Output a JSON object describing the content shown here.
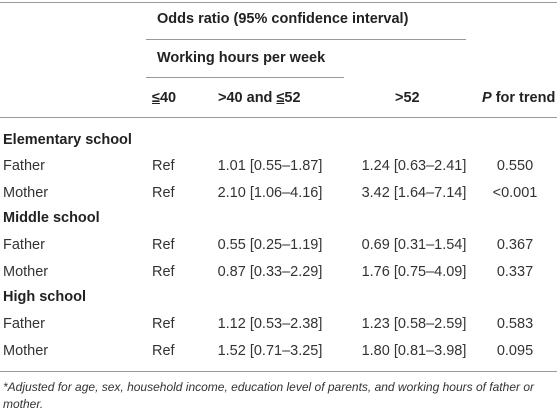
{
  "header": {
    "group": "Odds ratio (95% confidence interval)",
    "subgroup": "Working hours per week",
    "columns": {
      "c1_sym": "≤",
      "c1_num": "40",
      "c2_pre": ">40 and ",
      "c2_sym": "≤",
      "c2_num": "52",
      "c3": ">52",
      "trend_p": "P",
      "trend_rest": " for trend"
    }
  },
  "sections": [
    {
      "title": "Elementary school",
      "rows": [
        {
          "label": "Father",
          "ref": "Ref",
          "c2": "1.01 [0.55–1.87]",
          "c3": "1.24 [0.63–2.41]",
          "p": "0.550"
        },
        {
          "label": "Mother",
          "ref": "Ref",
          "c2": "2.10 [1.06–4.16]",
          "c3": "3.42 [1.64–7.14]",
          "p": "<0.001"
        }
      ]
    },
    {
      "title": "Middle school",
      "rows": [
        {
          "label": "Father",
          "ref": "Ref",
          "c2": "0.55 [0.25–1.19]",
          "c3": "0.69 [0.31–1.54]",
          "p": "0.367"
        },
        {
          "label": "Mother",
          "ref": "Ref",
          "c2": "0.87 [0.33–2.29]",
          "c3": "1.76 [0.75–4.09]",
          "p": "0.337"
        }
      ]
    },
    {
      "title": "High school",
      "rows": [
        {
          "label": "Father",
          "ref": "Ref",
          "c2": "1.12 [0.53–2.38]",
          "c3": "1.23 [0.58–2.59]",
          "p": "0.583"
        },
        {
          "label": "Mother",
          "ref": "Ref",
          "c2": "1.52 [0.71–3.25]",
          "c3": "1.80 [0.81–3.98]",
          "p": "0.095"
        }
      ]
    }
  ],
  "footnote": "*Adjusted for age, sex, household income, education level of parents, and working hours of father or mother."
}
